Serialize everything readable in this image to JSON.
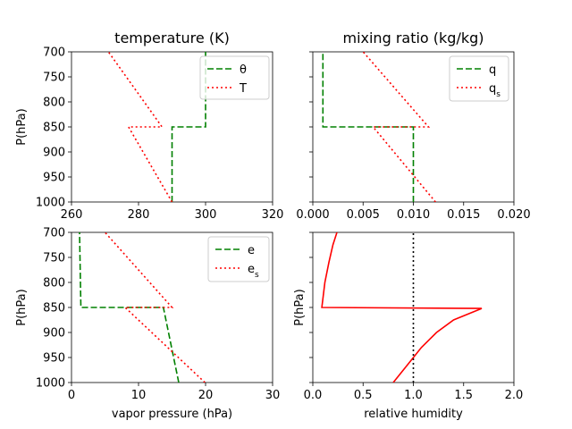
{
  "chart_data": [
    {
      "type": "line",
      "title": "temperature (K)",
      "xlabel": "",
      "ylabel": "P(hPa)",
      "xlim": [
        260,
        320
      ],
      "ylim": [
        1000,
        700
      ],
      "x_ticks": [
        "260",
        "280",
        "300",
        "320"
      ],
      "y_ticks": [
        "700",
        "750",
        "800",
        "850",
        "900",
        "950",
        "1000"
      ],
      "legend": "top-right",
      "series": [
        {
          "name": "θ",
          "color": "#008000",
          "style": "dashed",
          "x": [
            290,
            290,
            300,
            300
          ],
          "y": [
            1000,
            850,
            850,
            700
          ]
        },
        {
          "name": "T",
          "color": "#ff0000",
          "style": "dotted",
          "x": [
            290,
            277,
            287,
            271
          ],
          "y": [
            1000,
            850,
            850,
            700
          ]
        }
      ]
    },
    {
      "type": "line",
      "title": "mixing ratio (kg/kg)",
      "xlabel": "",
      "ylabel": "",
      "xlim": [
        0,
        0.02
      ],
      "ylim": [
        1000,
        700
      ],
      "x_ticks": [
        "0.000",
        "0.005",
        "0.010",
        "0.015",
        "0.020"
      ],
      "y_ticks": [
        "",
        "",
        "",
        "",
        "",
        "",
        ""
      ],
      "legend": "top-right",
      "series": [
        {
          "name": "q",
          "color": "#008000",
          "style": "dashed",
          "x": [
            0.01,
            0.01,
            0.001,
            0.001
          ],
          "y": [
            1000,
            850,
            850,
            700
          ]
        },
        {
          "name": "q_s",
          "color": "#ff0000",
          "style": "dotted",
          "x": [
            0.0122,
            0.006,
            0.0115,
            0.005
          ],
          "y": [
            1000,
            850,
            850,
            700
          ]
        }
      ]
    },
    {
      "type": "line",
      "title": "",
      "xlabel": "vapor pressure (hPa)",
      "ylabel": "P(hPa)",
      "xlim": [
        0,
        30
      ],
      "ylim": [
        1000,
        700
      ],
      "x_ticks": [
        "0",
        "10",
        "20",
        "30"
      ],
      "y_ticks": [
        "700",
        "750",
        "800",
        "850",
        "900",
        "950",
        "1000"
      ],
      "legend": "top-right",
      "series": [
        {
          "name": "e",
          "color": "#008000",
          "style": "dashed",
          "x": [
            16,
            13.7,
            1.4,
            1.2
          ],
          "y": [
            1000,
            850,
            850,
            700
          ]
        },
        {
          "name": "e_s",
          "color": "#ff0000",
          "style": "dotted",
          "x": [
            19.9,
            8,
            15,
            5
          ],
          "y": [
            1000,
            850,
            850,
            700
          ]
        }
      ]
    },
    {
      "type": "line",
      "title": "",
      "xlabel": "relative humidity",
      "ylabel": "P(hPa)",
      "xlim": [
        0,
        2.0
      ],
      "ylim": [
        1000,
        700
      ],
      "x_ticks": [
        "0.0",
        "0.5",
        "1.0",
        "1.5",
        "2.0"
      ],
      "y_ticks": [
        "",
        "",
        "",
        "",
        "",
        "",
        ""
      ],
      "legend": "none",
      "series": [
        {
          "name": "",
          "color": "#ff0000",
          "style": "solid",
          "x": [
            0.8,
            0.94,
            1.08,
            1.23,
            1.4,
            1.68,
            0.09,
            0.12,
            0.16,
            0.2,
            0.24
          ],
          "y": [
            1000,
            965,
            930,
            900,
            875,
            852,
            850,
            800,
            760,
            725,
            700
          ]
        },
        {
          "name": "",
          "color": "#000000",
          "style": "dotted",
          "x": [
            1.0,
            1.0
          ],
          "y": [
            1000,
            700
          ]
        }
      ]
    }
  ],
  "legends": [
    {
      "entries": [
        {
          "main": "θ",
          "sub": ""
        },
        {
          "main": "T",
          "sub": ""
        }
      ]
    },
    {
      "entries": [
        {
          "main": "q",
          "sub": ""
        },
        {
          "main": "q",
          "sub": "s"
        }
      ]
    },
    {
      "entries": [
        {
          "main": "e",
          "sub": ""
        },
        {
          "main": "e",
          "sub": "s"
        }
      ]
    }
  ]
}
